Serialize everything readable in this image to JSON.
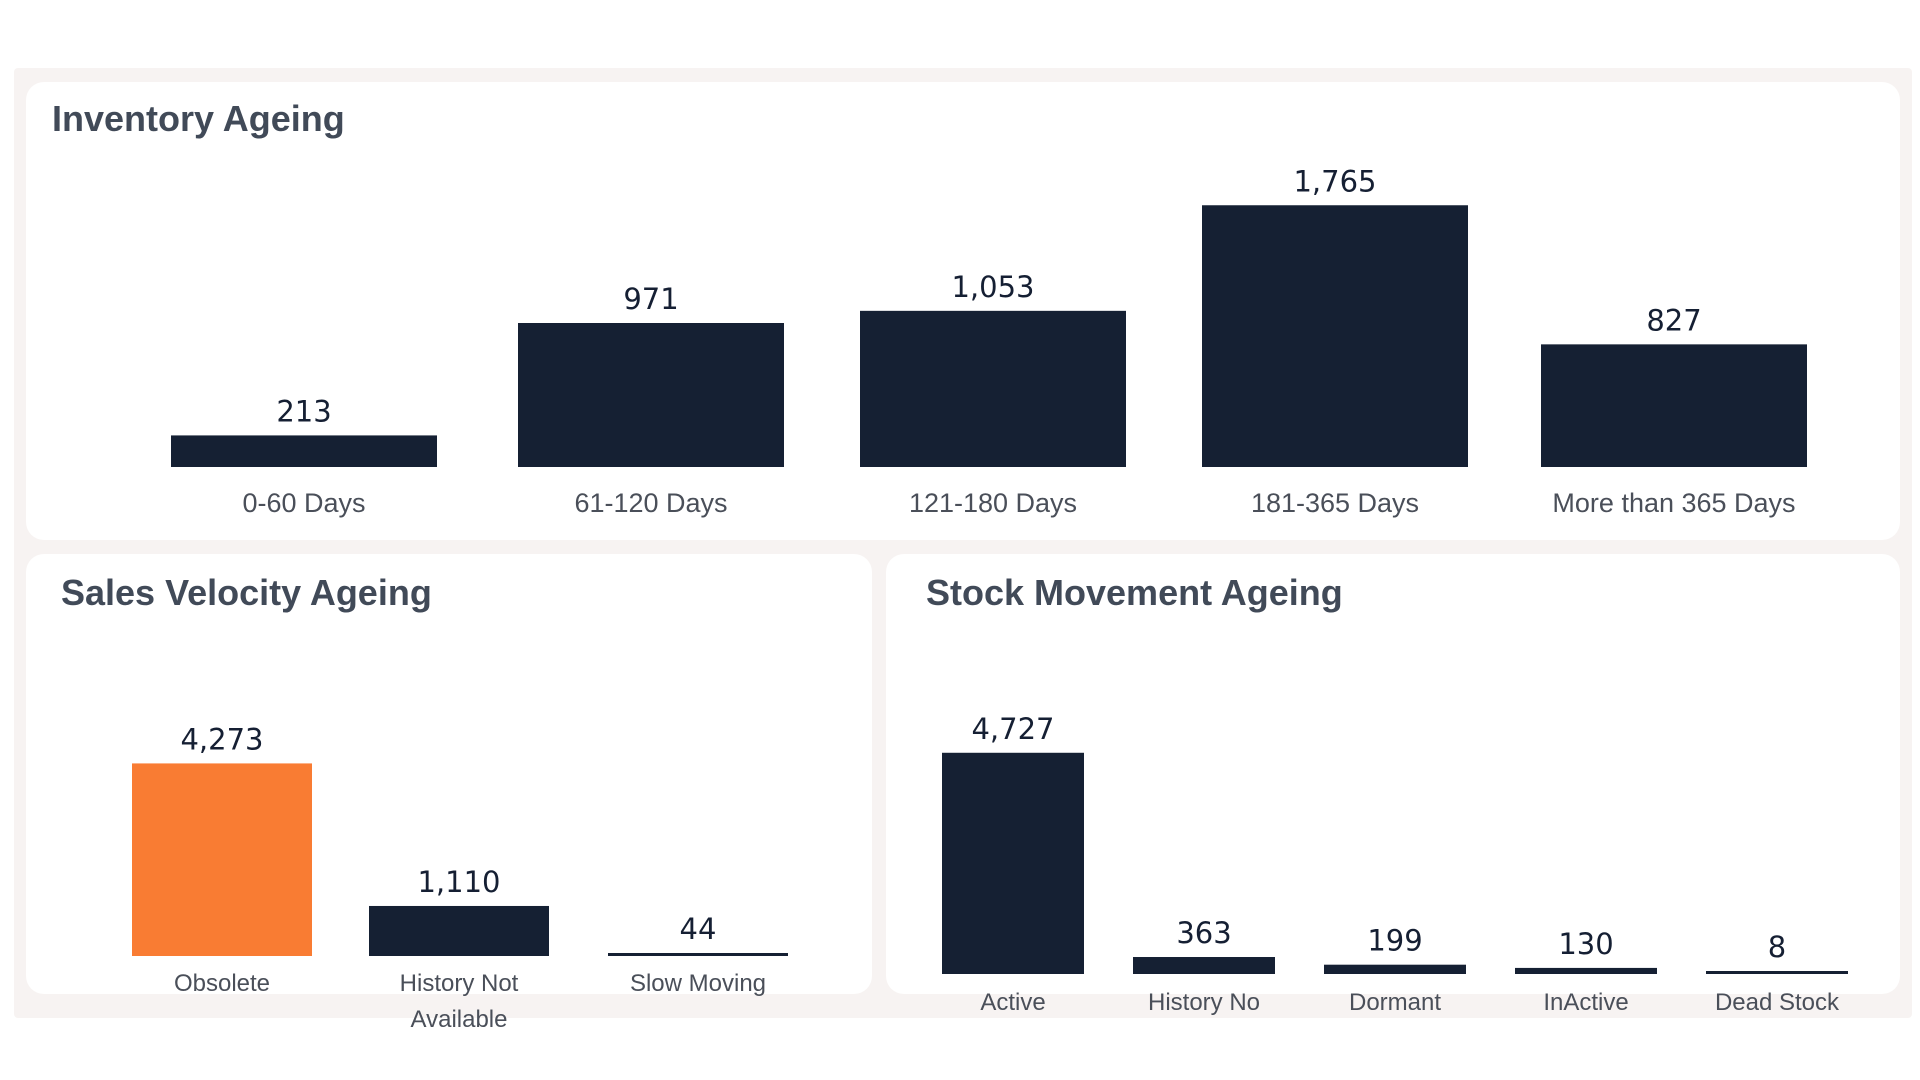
{
  "panels": {
    "inventory": {
      "title": "Inventory Ageing"
    },
    "sales": {
      "title": "Sales Velocity Ageing"
    },
    "stock": {
      "title": "Stock Movement Ageing"
    }
  },
  "colors": {
    "bar": "#152033",
    "highlight": "#f97c33"
  },
  "chart_data": [
    {
      "id": "inventory",
      "type": "bar",
      "title": "Inventory Ageing",
      "categories": [
        "0-60 Days",
        "61-120 Days",
        "121-180 Days",
        "181-365 Days",
        "More than 365 Days"
      ],
      "values": [
        213,
        971,
        1053,
        1765,
        827
      ],
      "value_labels": [
        "213",
        "971",
        "1,053",
        "1,765",
        "827"
      ],
      "grid": false,
      "legend": "none"
    },
    {
      "id": "sales",
      "type": "bar",
      "title": "Sales Velocity Ageing",
      "categories": [
        "Obsolete",
        "History Not Available",
        "Slow Moving"
      ],
      "category_lines": [
        [
          "Obsolete"
        ],
        [
          "History Not",
          "Available"
        ],
        [
          "Slow Moving"
        ]
      ],
      "values": [
        4273,
        1110,
        44
      ],
      "value_labels": [
        "4,273",
        "1,110",
        "44"
      ],
      "highlight_index": 0,
      "grid": false,
      "legend": "none"
    },
    {
      "id": "stock",
      "type": "bar",
      "title": "Stock Movement Ageing",
      "categories": [
        "Active",
        "History No",
        "Dormant",
        "InActive",
        "Dead Stock"
      ],
      "values": [
        4727,
        363,
        199,
        130,
        8
      ],
      "value_labels": [
        "4,727",
        "363",
        "199",
        "130",
        "8"
      ],
      "grid": false,
      "legend": "none"
    }
  ]
}
